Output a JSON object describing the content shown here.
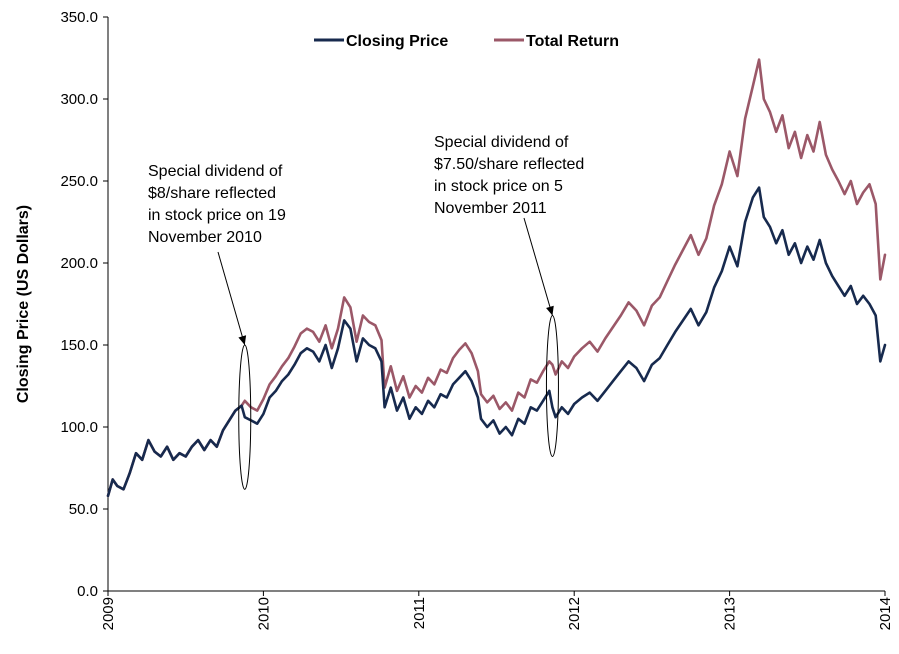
{
  "chart_data": {
    "type": "line",
    "title": "",
    "xlabel": "",
    "ylabel": "Closing Price (US Dollars)",
    "xlim": [
      2009,
      2014
    ],
    "ylim": [
      0,
      350
    ],
    "x_ticks": [
      "2009",
      "2010",
      "2011",
      "2012",
      "2013",
      "2014"
    ],
    "y_ticks": [
      "0.0",
      "50.0",
      "100.0",
      "150.0",
      "200.0",
      "250.0",
      "300.0",
      "350.0"
    ],
    "grid": false,
    "legend_position": "top-center",
    "colors": {
      "Closing Price": "#172a4e",
      "Total Return": "#9b5868"
    },
    "series": [
      {
        "name": "Closing Price",
        "points": [
          [
            2009.0,
            58
          ],
          [
            2009.03,
            68
          ],
          [
            2009.06,
            64
          ],
          [
            2009.1,
            62
          ],
          [
            2009.14,
            72
          ],
          [
            2009.18,
            84
          ],
          [
            2009.22,
            80
          ],
          [
            2009.26,
            92
          ],
          [
            2009.3,
            85
          ],
          [
            2009.34,
            82
          ],
          [
            2009.38,
            88
          ],
          [
            2009.42,
            80
          ],
          [
            2009.46,
            84
          ],
          [
            2009.5,
            82
          ],
          [
            2009.54,
            88
          ],
          [
            2009.58,
            92
          ],
          [
            2009.62,
            86
          ],
          [
            2009.66,
            92
          ],
          [
            2009.7,
            88
          ],
          [
            2009.74,
            98
          ],
          [
            2009.78,
            104
          ],
          [
            2009.82,
            110
          ],
          [
            2009.86,
            113
          ],
          [
            2009.88,
            106
          ],
          [
            2009.92,
            104
          ],
          [
            2009.96,
            102
          ],
          [
            2010.0,
            108
          ],
          [
            2010.04,
            118
          ],
          [
            2010.08,
            122
          ],
          [
            2010.12,
            128
          ],
          [
            2010.16,
            132
          ],
          [
            2010.2,
            138
          ],
          [
            2010.24,
            145
          ],
          [
            2010.28,
            148
          ],
          [
            2010.32,
            146
          ],
          [
            2010.36,
            140
          ],
          [
            2010.4,
            150
          ],
          [
            2010.44,
            136
          ],
          [
            2010.48,
            148
          ],
          [
            2010.52,
            165
          ],
          [
            2010.56,
            160
          ],
          [
            2010.6,
            140
          ],
          [
            2010.64,
            154
          ],
          [
            2010.68,
            150
          ],
          [
            2010.72,
            148
          ],
          [
            2010.76,
            140
          ],
          [
            2010.78,
            112
          ],
          [
            2010.82,
            124
          ],
          [
            2010.86,
            110
          ],
          [
            2010.9,
            118
          ],
          [
            2010.94,
            105
          ],
          [
            2010.98,
            112
          ],
          [
            2011.02,
            108
          ],
          [
            2011.06,
            116
          ],
          [
            2011.1,
            112
          ],
          [
            2011.14,
            120
          ],
          [
            2011.18,
            118
          ],
          [
            2011.22,
            126
          ],
          [
            2011.26,
            130
          ],
          [
            2011.3,
            134
          ],
          [
            2011.34,
            128
          ],
          [
            2011.38,
            118
          ],
          [
            2011.4,
            105
          ],
          [
            2011.44,
            100
          ],
          [
            2011.48,
            104
          ],
          [
            2011.52,
            96
          ],
          [
            2011.56,
            100
          ],
          [
            2011.6,
            95
          ],
          [
            2011.64,
            105
          ],
          [
            2011.68,
            102
          ],
          [
            2011.72,
            112
          ],
          [
            2011.76,
            110
          ],
          [
            2011.8,
            116
          ],
          [
            2011.84,
            122
          ],
          [
            2011.86,
            112
          ],
          [
            2011.88,
            106
          ],
          [
            2011.92,
            112
          ],
          [
            2011.96,
            108
          ],
          [
            2012.0,
            114
          ],
          [
            2012.05,
            118
          ],
          [
            2012.1,
            121
          ],
          [
            2012.15,
            116
          ],
          [
            2012.2,
            122
          ],
          [
            2012.25,
            128
          ],
          [
            2012.3,
            134
          ],
          [
            2012.35,
            140
          ],
          [
            2012.4,
            136
          ],
          [
            2012.45,
            128
          ],
          [
            2012.5,
            138
          ],
          [
            2012.55,
            142
          ],
          [
            2012.6,
            150
          ],
          [
            2012.65,
            158
          ],
          [
            2012.7,
            165
          ],
          [
            2012.75,
            172
          ],
          [
            2012.8,
            162
          ],
          [
            2012.85,
            170
          ],
          [
            2012.9,
            185
          ],
          [
            2012.95,
            195
          ],
          [
            2013.0,
            210
          ],
          [
            2013.05,
            198
          ],
          [
            2013.1,
            225
          ],
          [
            2013.15,
            240
          ],
          [
            2013.19,
            246
          ],
          [
            2013.22,
            228
          ],
          [
            2013.26,
            222
          ],
          [
            2013.3,
            212
          ],
          [
            2013.34,
            220
          ],
          [
            2013.38,
            205
          ],
          [
            2013.42,
            212
          ],
          [
            2013.46,
            200
          ],
          [
            2013.5,
            210
          ],
          [
            2013.54,
            202
          ],
          [
            2013.58,
            214
          ],
          [
            2013.62,
            200
          ],
          [
            2013.66,
            192
          ],
          [
            2013.7,
            186
          ],
          [
            2013.74,
            180
          ],
          [
            2013.78,
            186
          ],
          [
            2013.82,
            175
          ],
          [
            2013.86,
            180
          ],
          [
            2013.9,
            175
          ],
          [
            2013.94,
            168
          ],
          [
            2013.97,
            140
          ],
          [
            2014.0,
            150
          ]
        ]
      },
      {
        "name": "Total Return",
        "points": [
          [
            2009.0,
            58
          ],
          [
            2009.03,
            68
          ],
          [
            2009.06,
            64
          ],
          [
            2009.1,
            62
          ],
          [
            2009.14,
            72
          ],
          [
            2009.18,
            84
          ],
          [
            2009.22,
            80
          ],
          [
            2009.26,
            92
          ],
          [
            2009.3,
            85
          ],
          [
            2009.34,
            82
          ],
          [
            2009.38,
            88
          ],
          [
            2009.42,
            80
          ],
          [
            2009.46,
            84
          ],
          [
            2009.5,
            82
          ],
          [
            2009.54,
            88
          ],
          [
            2009.58,
            92
          ],
          [
            2009.62,
            86
          ],
          [
            2009.66,
            92
          ],
          [
            2009.7,
            88
          ],
          [
            2009.74,
            98
          ],
          [
            2009.78,
            104
          ],
          [
            2009.82,
            110
          ],
          [
            2009.86,
            113
          ],
          [
            2009.88,
            116
          ],
          [
            2009.92,
            112
          ],
          [
            2009.96,
            110
          ],
          [
            2010.0,
            117
          ],
          [
            2010.04,
            126
          ],
          [
            2010.08,
            131
          ],
          [
            2010.12,
            137
          ],
          [
            2010.16,
            142
          ],
          [
            2010.2,
            149
          ],
          [
            2010.24,
            157
          ],
          [
            2010.28,
            160
          ],
          [
            2010.32,
            158
          ],
          [
            2010.36,
            152
          ],
          [
            2010.4,
            162
          ],
          [
            2010.44,
            148
          ],
          [
            2010.48,
            160
          ],
          [
            2010.52,
            179
          ],
          [
            2010.56,
            173
          ],
          [
            2010.6,
            152
          ],
          [
            2010.64,
            168
          ],
          [
            2010.68,
            164
          ],
          [
            2010.72,
            162
          ],
          [
            2010.76,
            153
          ],
          [
            2010.78,
            124
          ],
          [
            2010.82,
            137
          ],
          [
            2010.86,
            122
          ],
          [
            2010.9,
            131
          ],
          [
            2010.94,
            118
          ],
          [
            2010.98,
            125
          ],
          [
            2011.02,
            121
          ],
          [
            2011.06,
            130
          ],
          [
            2011.1,
            126
          ],
          [
            2011.14,
            135
          ],
          [
            2011.18,
            133
          ],
          [
            2011.22,
            142
          ],
          [
            2011.26,
            147
          ],
          [
            2011.3,
            151
          ],
          [
            2011.34,
            145
          ],
          [
            2011.38,
            134
          ],
          [
            2011.4,
            120
          ],
          [
            2011.44,
            115
          ],
          [
            2011.48,
            119
          ],
          [
            2011.52,
            111
          ],
          [
            2011.56,
            115
          ],
          [
            2011.6,
            110
          ],
          [
            2011.64,
            121
          ],
          [
            2011.68,
            118
          ],
          [
            2011.72,
            129
          ],
          [
            2011.76,
            127
          ],
          [
            2011.8,
            134
          ],
          [
            2011.84,
            140
          ],
          [
            2011.86,
            138
          ],
          [
            2011.88,
            132
          ],
          [
            2011.92,
            140
          ],
          [
            2011.96,
            136
          ],
          [
            2012.0,
            143
          ],
          [
            2012.05,
            148
          ],
          [
            2012.1,
            152
          ],
          [
            2012.15,
            146
          ],
          [
            2012.2,
            154
          ],
          [
            2012.25,
            161
          ],
          [
            2012.3,
            168
          ],
          [
            2012.35,
            176
          ],
          [
            2012.4,
            171
          ],
          [
            2012.45,
            162
          ],
          [
            2012.5,
            174
          ],
          [
            2012.55,
            179
          ],
          [
            2012.6,
            189
          ],
          [
            2012.65,
            199
          ],
          [
            2012.7,
            208
          ],
          [
            2012.75,
            217
          ],
          [
            2012.8,
            205
          ],
          [
            2012.85,
            215
          ],
          [
            2012.9,
            235
          ],
          [
            2012.95,
            248
          ],
          [
            2013.0,
            268
          ],
          [
            2013.05,
            253
          ],
          [
            2013.1,
            288
          ],
          [
            2013.15,
            308
          ],
          [
            2013.19,
            324
          ],
          [
            2013.22,
            300
          ],
          [
            2013.26,
            292
          ],
          [
            2013.3,
            280
          ],
          [
            2013.34,
            290
          ],
          [
            2013.38,
            270
          ],
          [
            2013.42,
            280
          ],
          [
            2013.46,
            264
          ],
          [
            2013.5,
            278
          ],
          [
            2013.54,
            268
          ],
          [
            2013.58,
            286
          ],
          [
            2013.62,
            266
          ],
          [
            2013.66,
            257
          ],
          [
            2013.7,
            250
          ],
          [
            2013.74,
            242
          ],
          [
            2013.78,
            250
          ],
          [
            2013.82,
            236
          ],
          [
            2013.86,
            243
          ],
          [
            2013.9,
            248
          ],
          [
            2013.94,
            236
          ],
          [
            2013.97,
            190
          ],
          [
            2014.0,
            205
          ]
        ]
      }
    ],
    "annotations": [
      {
        "lines": [
          "Special dividend of",
          "$8/share reflected",
          "in stock price on 19",
          "November 2010"
        ],
        "target_x": 2009.88,
        "ellipse_y": [
          62,
          150
        ]
      },
      {
        "lines": [
          "Special dividend of",
          "$7.50/share reflected",
          "in stock price on 5",
          "November 2011"
        ],
        "target_x": 2011.86,
        "ellipse_y": [
          82,
          168
        ]
      }
    ]
  }
}
